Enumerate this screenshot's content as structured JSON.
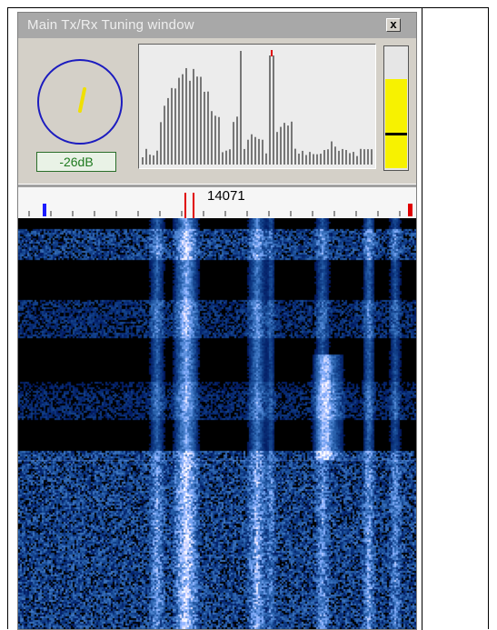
{
  "window": {
    "title": "Main Tx/Rx Tuning window",
    "close_label": "x"
  },
  "signal": {
    "level_text": "-26dB"
  },
  "scale": {
    "frequency_label": "14071"
  },
  "colors": {
    "titlebar": "#a8a8a8",
    "meter_ring": "#1c1cbf",
    "meter_needle": "#f0e000",
    "level_text": "#1f7a1f",
    "vu_fill": "#f7f200",
    "cursor_red": "#e00000",
    "marker_blue": "#1c1cff"
  },
  "icons": {
    "close": "close-icon",
    "meter": "signal-meter-dial",
    "waterfall": "waterfall-display"
  }
}
